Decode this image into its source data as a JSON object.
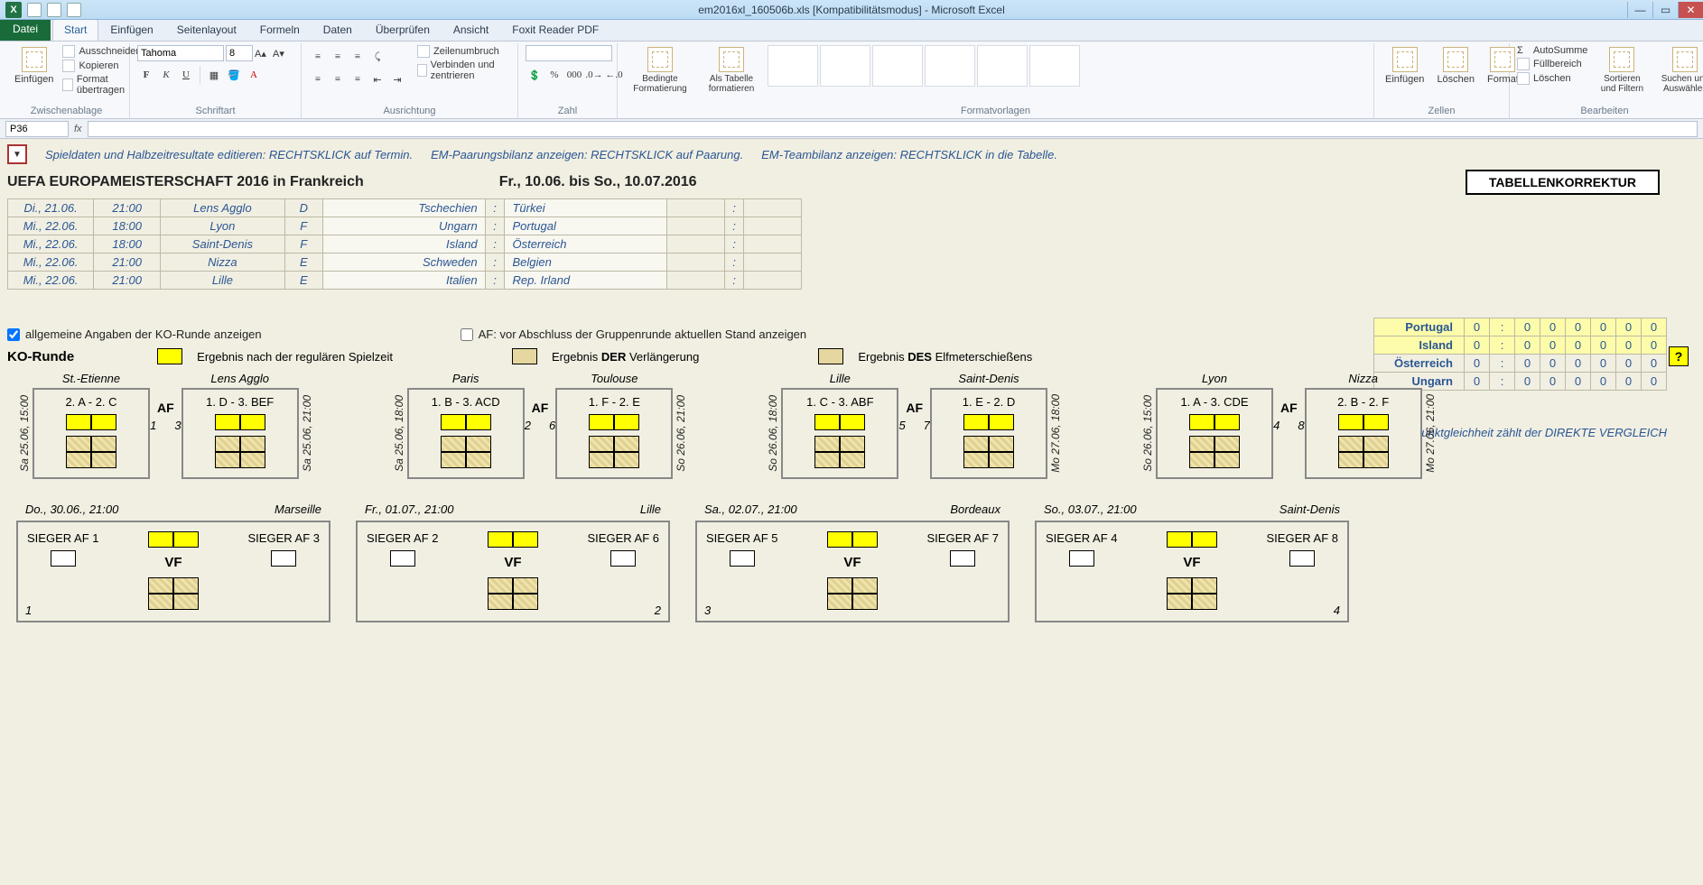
{
  "window": {
    "title": "em2016xl_160506b.xls  [Kompatibilitätsmodus] - Microsoft Excel"
  },
  "ribbon": {
    "file": "Datei",
    "tabs": [
      "Start",
      "Einfügen",
      "Seitenlayout",
      "Formeln",
      "Daten",
      "Überprüfen",
      "Ansicht",
      "Foxit Reader PDF"
    ],
    "active": "Start",
    "clipboard": {
      "paste": "Einfügen",
      "cut": "Ausschneiden",
      "copy": "Kopieren",
      "formatPainter": "Format übertragen",
      "group": "Zwischenablage"
    },
    "font": {
      "name": "Tahoma",
      "size": "8",
      "group": "Schriftart"
    },
    "alignment": {
      "wrap": "Zeilenumbruch",
      "merge": "Verbinden und zentrieren",
      "group": "Ausrichtung"
    },
    "number": {
      "group": "Zahl"
    },
    "styles": {
      "conditional": "Bedingte Formatierung",
      "asTable": "Als Tabelle formatieren",
      "group": "Formatvorlagen"
    },
    "cells": {
      "insert": "Einfügen",
      "delete": "Löschen",
      "format": "Format",
      "group": "Zellen"
    },
    "editing": {
      "autosum": "AutoSumme",
      "fill": "Füllbereich",
      "clear": "Löschen",
      "sort": "Sortieren und Filtern",
      "find": "Suchen und Auswählen",
      "group": "Bearbeiten"
    }
  },
  "formula_bar": {
    "name_box": "P36",
    "fx": "fx"
  },
  "hints": {
    "h1": "Spieldaten und Halbzeitresultate editieren: RECHTSKLICK auf Termin.",
    "h2": "EM-Paarungsbilanz anzeigen: RECHTSKLICK auf Paarung.",
    "h3": "EM-Teambilanz anzeigen: RECHTSKLICK in die Tabelle."
  },
  "header": {
    "title": "UEFA EUROPAMEISTERSCHAFT 2016 in Frankreich",
    "dates": "Fr., 10.06. bis So., 10.07.2016",
    "korrektur": "TABELLENKORREKTUR"
  },
  "matches": [
    {
      "date": "Di., 21.06.",
      "time": "21:00",
      "city": "Lens Agglo",
      "grp": "D",
      "t1": "Tschechien",
      "t2": "Türkei"
    },
    {
      "date": "Mi., 22.06.",
      "time": "18:00",
      "city": "Lyon",
      "grp": "F",
      "t1": "Ungarn",
      "t2": "Portugal"
    },
    {
      "date": "Mi., 22.06.",
      "time": "18:00",
      "city": "Saint-Denis",
      "grp": "F",
      "t1": "Island",
      "t2": "Österreich"
    },
    {
      "date": "Mi., 22.06.",
      "time": "21:00",
      "city": "Nizza",
      "grp": "E",
      "t1": "Schweden",
      "t2": "Belgien"
    },
    {
      "date": "Mi., 22.06.",
      "time": "21:00",
      "city": "Lille",
      "grp": "E",
      "t1": "Italien",
      "t2": "Rep. Irland"
    }
  ],
  "standings": [
    {
      "team": "Portugal",
      "gf": "0",
      "ga": "0",
      "c3": "0",
      "c4": "0",
      "c5": "0",
      "c6": "0",
      "c7": "0",
      "hl": true
    },
    {
      "team": "Island",
      "gf": "0",
      "ga": "0",
      "c3": "0",
      "c4": "0",
      "c5": "0",
      "c6": "0",
      "c7": "0",
      "hl": true
    },
    {
      "team": "Österreich",
      "gf": "0",
      "ga": "0",
      "c3": "0",
      "c4": "0",
      "c5": "0",
      "c6": "0",
      "c7": "0",
      "hl": false
    },
    {
      "team": "Ungarn",
      "gf": "0",
      "ga": "0",
      "c3": "0",
      "c4": "0",
      "c5": "0",
      "c6": "0",
      "c7": "0",
      "hl": false
    }
  ],
  "note_right": "Bei Punktgleichheit zählt der DIREKTE VERGLEICH",
  "ko": {
    "chk1": "allgemeine Angaben der KO-Runde anzeigen",
    "chk2": "AF: vor Abschluss der Gruppenrunde aktuellen Stand anzeigen",
    "title": "KO-Runde",
    "legend1": "Ergebnis nach der regulären Spielzeit",
    "legend2_a": "Ergebnis ",
    "legend2_b": "DER",
    "legend2_c": " Verlängerung",
    "legend3_a": "Ergebnis ",
    "legend3_b": "DES",
    "legend3_c": " Elfmeterschießens",
    "help": "?"
  },
  "bracket": [
    {
      "date_l": "Sa 25.06, 15:00",
      "city_l": "St.-Etienne",
      "label_l": "2. A - 2. C",
      "num_l": "1",
      "mid": "AF",
      "date_r": "Sa 25.06, 21:00",
      "city_r": "Lens Agglo",
      "label_r": "1. D - 3. BEF",
      "num_r": "3"
    },
    {
      "date_l": "Sa 25.06, 18:00",
      "city_l": "Paris",
      "label_l": "1. B - 3. ACD",
      "num_l": "2",
      "mid": "AF",
      "date_r": "So 26.06, 21:00",
      "city_r": "Toulouse",
      "label_r": "1. F - 2. E",
      "num_r": "6"
    },
    {
      "date_l": "So 26.06, 18:00",
      "city_l": "Lille",
      "label_l": "1. C - 3. ABF",
      "num_l": "5",
      "mid": "AF",
      "date_r": "Mo 27.06, 18:00",
      "city_r": "Saint-Denis",
      "label_r": "1. E - 2. D",
      "num_r": "7"
    },
    {
      "date_l": "So 26.06, 15:00",
      "city_l": "Lyon",
      "label_l": "1. A - 3. CDE",
      "num_l": "4",
      "mid": "AF",
      "date_r": "Mo 27.06, 21:00",
      "city_r": "Nizza",
      "label_r": "2. B - 2. F",
      "num_r": "8"
    }
  ],
  "vf": [
    {
      "date": "Do., 30.06., 21:00",
      "city": "Marseille",
      "l": "SIEGER AF 1",
      "r": "SIEGER AF 3",
      "nl": "1",
      "nr": ""
    },
    {
      "date": "Fr., 01.07., 21:00",
      "city": "Lille",
      "l": "SIEGER AF 2",
      "r": "SIEGER AF 6",
      "nl": "",
      "nr": "2"
    },
    {
      "date": "Sa., 02.07., 21:00",
      "city": "Bordeaux",
      "l": "SIEGER AF 5",
      "r": "SIEGER AF 7",
      "nl": "3",
      "nr": ""
    },
    {
      "date": "So., 03.07., 21:00",
      "city": "Saint-Denis",
      "l": "SIEGER AF 4",
      "r": "SIEGER AF 8",
      "nl": "",
      "nr": "4"
    }
  ],
  "vf_label": "VF",
  "colors": {
    "yellow": "#ffff00",
    "tan": "#e6d7a0",
    "sheet_bg": "#f1efe2",
    "link": "#2a5694"
  }
}
